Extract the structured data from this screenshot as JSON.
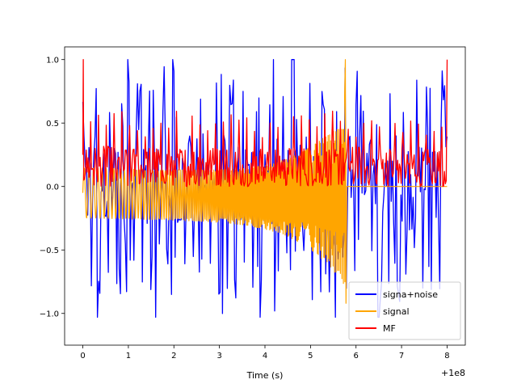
{
  "chart_data": {
    "type": "line",
    "title": "",
    "xlabel": "Time (s)",
    "ylabel": "",
    "x_offset_label": "+1e8",
    "xlim": [
      -0.4,
      8.4
    ],
    "ylim": [
      -1.25,
      1.1
    ],
    "xticks": [
      0,
      1,
      2,
      3,
      4,
      5,
      6,
      7,
      8
    ],
    "xtick_labels": [
      "0",
      "1",
      "2",
      "3",
      "4",
      "5",
      "6",
      "7",
      "8"
    ],
    "yticks": [
      -1.0,
      -0.5,
      0.0,
      0.5,
      1.0
    ],
    "ytick_labels": [
      "−1.0",
      "−0.5",
      "0.0",
      "0.5",
      "1.0"
    ],
    "grid": false,
    "legend_position": "lower-right",
    "series": [
      {
        "name": "signa+noise",
        "color": "#0000ff",
        "kind": "noisy",
        "x_range": [
          0,
          8
        ],
        "samples": 300,
        "spike_positions": [
          0.3,
          0.8,
          1.0,
          1.25,
          1.5,
          1.8,
          2.0,
          2.6,
          3.05,
          3.3,
          3.85,
          4.2,
          4.6,
          5.3,
          5.55,
          5.75,
          6.05,
          6.5,
          6.9,
          7.6,
          7.9
        ],
        "max": 1.0,
        "min": -1.03
      },
      {
        "name": "signal",
        "color": "#ffa500",
        "kind": "chirp",
        "x_range": [
          0,
          5.78
        ],
        "flat_until": 8.0,
        "peak": 1.0,
        "trough": -0.92
      },
      {
        "name": "MF",
        "color": "#ff0000",
        "kind": "matched-filter",
        "x_range": [
          0,
          8
        ],
        "samples": 420,
        "endpoints_value": 1.0,
        "typical_range": [
          0.0,
          0.5
        ]
      }
    ]
  }
}
